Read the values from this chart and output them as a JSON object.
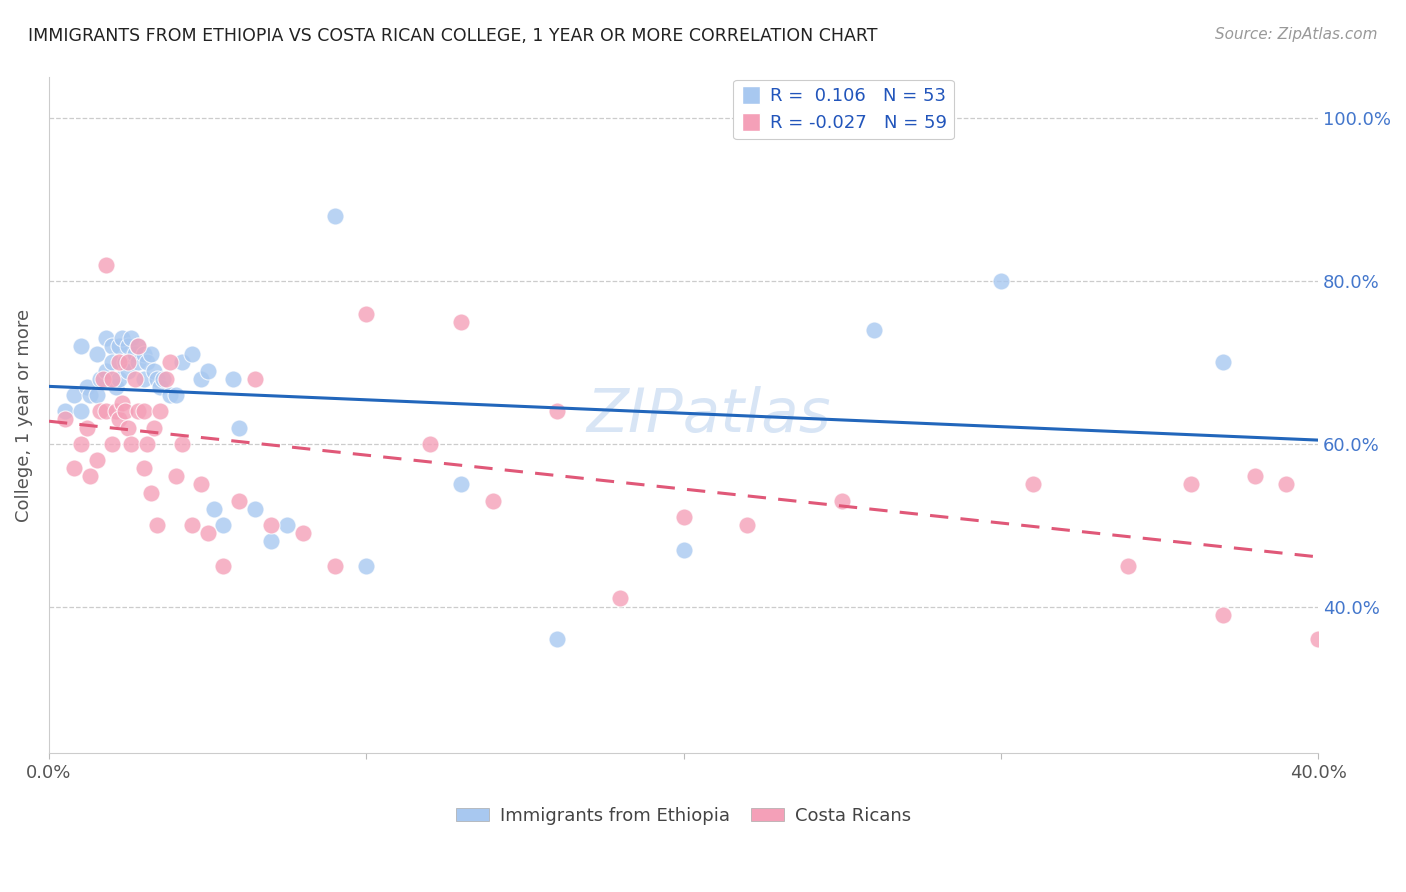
{
  "title": "IMMIGRANTS FROM ETHIOPIA VS COSTA RICAN COLLEGE, 1 YEAR OR MORE CORRELATION CHART",
  "source": "Source: ZipAtlas.com",
  "ylabel": "College, 1 year or more",
  "xlim": [
    0.0,
    0.4
  ],
  "ylim": [
    0.22,
    1.05
  ],
  "color_blue": "#a8c8f0",
  "color_pink": "#f4a0b8",
  "line_blue": "#2266bb",
  "line_pink": "#e05878",
  "background_color": "#ffffff",
  "blue_scatter_x": [
    0.005,
    0.008,
    0.01,
    0.01,
    0.012,
    0.013,
    0.015,
    0.015,
    0.016,
    0.018,
    0.018,
    0.02,
    0.02,
    0.021,
    0.022,
    0.022,
    0.023,
    0.024,
    0.025,
    0.025,
    0.026,
    0.027,
    0.028,
    0.028,
    0.03,
    0.03,
    0.031,
    0.032,
    0.033,
    0.034,
    0.035,
    0.036,
    0.038,
    0.04,
    0.042,
    0.045,
    0.048,
    0.05,
    0.052,
    0.055,
    0.058,
    0.06,
    0.065,
    0.07,
    0.075,
    0.09,
    0.1,
    0.13,
    0.16,
    0.2,
    0.26,
    0.3,
    0.37
  ],
  "blue_scatter_y": [
    0.64,
    0.66,
    0.72,
    0.64,
    0.67,
    0.66,
    0.71,
    0.66,
    0.68,
    0.73,
    0.69,
    0.72,
    0.7,
    0.67,
    0.72,
    0.68,
    0.73,
    0.7,
    0.72,
    0.69,
    0.73,
    0.71,
    0.7,
    0.72,
    0.68,
    0.71,
    0.7,
    0.71,
    0.69,
    0.68,
    0.67,
    0.68,
    0.66,
    0.66,
    0.7,
    0.71,
    0.68,
    0.69,
    0.52,
    0.5,
    0.68,
    0.62,
    0.52,
    0.48,
    0.5,
    0.88,
    0.45,
    0.55,
    0.36,
    0.47,
    0.74,
    0.8,
    0.7
  ],
  "pink_scatter_x": [
    0.005,
    0.008,
    0.01,
    0.012,
    0.013,
    0.015,
    0.016,
    0.017,
    0.018,
    0.018,
    0.02,
    0.02,
    0.021,
    0.022,
    0.022,
    0.023,
    0.024,
    0.025,
    0.025,
    0.026,
    0.027,
    0.028,
    0.028,
    0.03,
    0.03,
    0.031,
    0.032,
    0.033,
    0.034,
    0.035,
    0.037,
    0.038,
    0.04,
    0.042,
    0.045,
    0.048,
    0.05,
    0.055,
    0.06,
    0.065,
    0.07,
    0.08,
    0.09,
    0.1,
    0.12,
    0.13,
    0.14,
    0.16,
    0.18,
    0.2,
    0.22,
    0.25,
    0.31,
    0.34,
    0.36,
    0.37,
    0.38,
    0.39,
    0.4
  ],
  "pink_scatter_y": [
    0.63,
    0.57,
    0.6,
    0.62,
    0.56,
    0.58,
    0.64,
    0.68,
    0.64,
    0.82,
    0.6,
    0.68,
    0.64,
    0.63,
    0.7,
    0.65,
    0.64,
    0.62,
    0.7,
    0.6,
    0.68,
    0.72,
    0.64,
    0.64,
    0.57,
    0.6,
    0.54,
    0.62,
    0.5,
    0.64,
    0.68,
    0.7,
    0.56,
    0.6,
    0.5,
    0.55,
    0.49,
    0.45,
    0.53,
    0.68,
    0.5,
    0.49,
    0.45,
    0.76,
    0.6,
    0.75,
    0.53,
    0.64,
    0.41,
    0.51,
    0.5,
    0.53,
    0.55,
    0.45,
    0.55,
    0.39,
    0.56,
    0.55,
    0.36
  ],
  "x_ticks": [
    0.0,
    0.1,
    0.2,
    0.3,
    0.4
  ],
  "x_tick_labels": [
    "0.0%",
    "",
    "",
    "",
    "40.0%"
  ],
  "y_ticks": [
    0.4,
    0.6,
    0.8,
    1.0
  ],
  "y_tick_right_labels": [
    "40.0%",
    "60.0%",
    "80.0%",
    "100.0%"
  ],
  "legend_label_blue": "R =  0.106   N = 53",
  "legend_label_pink": "R = -0.027   N = 59",
  "bottom_legend_blue": "Immigrants from Ethiopia",
  "bottom_legend_pink": "Costa Ricans"
}
